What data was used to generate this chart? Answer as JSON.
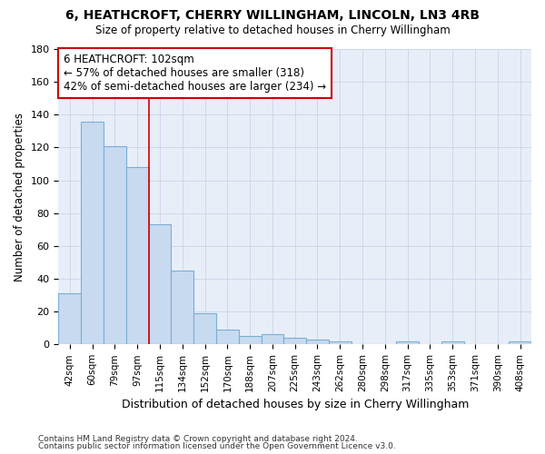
{
  "title": "6, HEATHCROFT, CHERRY WILLINGHAM, LINCOLN, LN3 4RB",
  "subtitle": "Size of property relative to detached houses in Cherry Willingham",
  "xlabel": "Distribution of detached houses by size in Cherry Willingham",
  "ylabel": "Number of detached properties",
  "categories": [
    "42sqm",
    "60sqm",
    "79sqm",
    "97sqm",
    "115sqm",
    "134sqm",
    "152sqm",
    "170sqm",
    "188sqm",
    "207sqm",
    "225sqm",
    "243sqm",
    "262sqm",
    "280sqm",
    "298sqm",
    "317sqm",
    "335sqm",
    "353sqm",
    "371sqm",
    "390sqm",
    "408sqm"
  ],
  "values": [
    31,
    136,
    121,
    108,
    73,
    45,
    19,
    9,
    5,
    6,
    4,
    3,
    2,
    0,
    0,
    2,
    0,
    2,
    0,
    0,
    2
  ],
  "bar_color": "#c8daf0",
  "bar_edge_color": "#7aafd4",
  "vline_color": "#cc0000",
  "vline_x": 3.5,
  "annotation_label": "6 HEATHCROFT: 102sqm",
  "annotation_line1": "← 57% of detached houses are smaller (318)",
  "annotation_line2": "42% of semi-detached houses are larger (234) →",
  "ylim": [
    0,
    180
  ],
  "yticks": [
    0,
    20,
    40,
    60,
    80,
    100,
    120,
    140,
    160,
    180
  ],
  "bg_color": "#ffffff",
  "plot_bg_color": "#e8eef8",
  "grid_color": "#c8d4e8",
  "footer1": "Contains HM Land Registry data © Crown copyright and database right 2024.",
  "footer2": "Contains public sector information licensed under the Open Government Licence v3.0."
}
